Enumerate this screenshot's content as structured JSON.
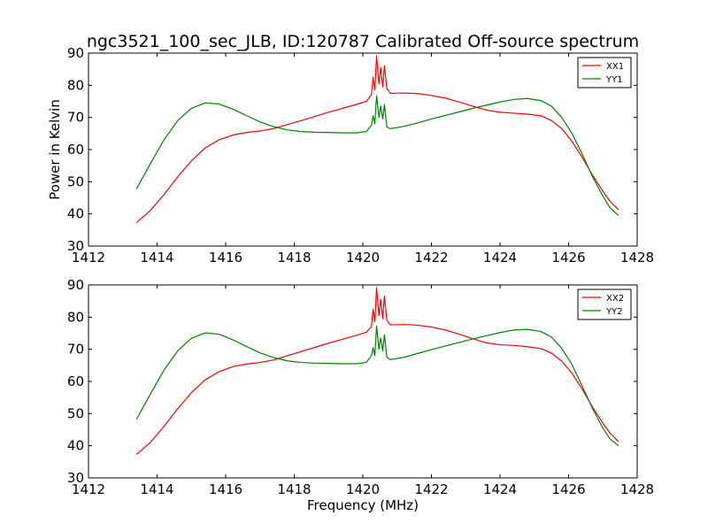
{
  "figure": {
    "title": "ngc3521_100_sec_JLB, ID:120787 Calibrated Off-source spectrum"
  },
  "chart_data": [
    {
      "type": "line",
      "ylabel": "Power in Kelvin",
      "xlabel": "",
      "xlim": [
        1412,
        1428
      ],
      "ylim": [
        30,
        90
      ],
      "xticks": [
        1412,
        1414,
        1416,
        1418,
        1420,
        1422,
        1424,
        1426,
        1428
      ],
      "yticks": [
        30,
        40,
        50,
        60,
        70,
        80,
        90
      ],
      "grid": false,
      "legend_position": "top-right",
      "series": [
        {
          "name": "XX1",
          "color": "#ff0000",
          "points": [
            [
              1413.4,
              37.3
            ],
            [
              1413.8,
              41.0
            ],
            [
              1414.2,
              46.0
            ],
            [
              1414.6,
              51.5
            ],
            [
              1415.0,
              56.5
            ],
            [
              1415.4,
              60.5
            ],
            [
              1415.8,
              63.0
            ],
            [
              1416.2,
              64.5
            ],
            [
              1416.6,
              65.3
            ],
            [
              1417.0,
              65.8
            ],
            [
              1417.4,
              66.5
            ],
            [
              1417.8,
              67.8
            ],
            [
              1418.2,
              69.0
            ],
            [
              1418.6,
              70.3
            ],
            [
              1419.0,
              71.6
            ],
            [
              1419.4,
              72.8
            ],
            [
              1419.8,
              74.0
            ],
            [
              1420.1,
              75.0
            ],
            [
              1420.25,
              77.0
            ],
            [
              1420.3,
              82.5
            ],
            [
              1420.35,
              78.5
            ],
            [
              1420.4,
              89.2
            ],
            [
              1420.47,
              80.5
            ],
            [
              1420.52,
              85.5
            ],
            [
              1420.58,
              79.5
            ],
            [
              1420.63,
              86.0
            ],
            [
              1420.7,
              79.0
            ],
            [
              1420.8,
              77.5
            ],
            [
              1421.2,
              77.6
            ],
            [
              1421.6,
              77.4
            ],
            [
              1422.0,
              76.8
            ],
            [
              1422.4,
              76.0
            ],
            [
              1422.8,
              74.8
            ],
            [
              1423.2,
              73.5
            ],
            [
              1423.6,
              72.3
            ],
            [
              1424.0,
              71.6
            ],
            [
              1424.4,
              71.3
            ],
            [
              1424.8,
              71.0
            ],
            [
              1425.2,
              70.5
            ],
            [
              1425.5,
              69.0
            ],
            [
              1425.8,
              66.5
            ],
            [
              1426.1,
              62.5
            ],
            [
              1426.4,
              57.5
            ],
            [
              1426.7,
              52.0
            ],
            [
              1427.0,
              47.0
            ],
            [
              1427.2,
              44.0
            ],
            [
              1427.45,
              41.3
            ]
          ]
        },
        {
          "name": "YY1",
          "color": "#008000",
          "points": [
            [
              1413.4,
              47.8
            ],
            [
              1413.8,
              55.5
            ],
            [
              1414.2,
              63.0
            ],
            [
              1414.6,
              69.0
            ],
            [
              1415.0,
              72.8
            ],
            [
              1415.4,
              74.5
            ],
            [
              1415.8,
              74.2
            ],
            [
              1416.2,
              72.6
            ],
            [
              1416.6,
              70.6
            ],
            [
              1417.0,
              68.6
            ],
            [
              1417.4,
              67.1
            ],
            [
              1417.8,
              66.1
            ],
            [
              1418.2,
              65.6
            ],
            [
              1418.6,
              65.4
            ],
            [
              1419.0,
              65.3
            ],
            [
              1419.4,
              65.2
            ],
            [
              1419.8,
              65.2
            ],
            [
              1420.1,
              65.6
            ],
            [
              1420.25,
              67.5
            ],
            [
              1420.3,
              70.5
            ],
            [
              1420.35,
              68.0
            ],
            [
              1420.4,
              76.8
            ],
            [
              1420.47,
              70.0
            ],
            [
              1420.52,
              73.5
            ],
            [
              1420.58,
              69.5
            ],
            [
              1420.63,
              74.0
            ],
            [
              1420.7,
              67.0
            ],
            [
              1420.8,
              66.5
            ],
            [
              1421.2,
              67.2
            ],
            [
              1421.6,
              68.3
            ],
            [
              1422.0,
              69.5
            ],
            [
              1422.4,
              70.6
            ],
            [
              1422.8,
              71.7
            ],
            [
              1423.2,
              72.8
            ],
            [
              1423.6,
              73.8
            ],
            [
              1424.0,
              74.8
            ],
            [
              1424.4,
              75.6
            ],
            [
              1424.8,
              75.9
            ],
            [
              1425.2,
              75.2
            ],
            [
              1425.5,
              73.5
            ],
            [
              1425.8,
              70.0
            ],
            [
              1426.1,
              65.0
            ],
            [
              1426.4,
              58.5
            ],
            [
              1426.7,
              51.5
            ],
            [
              1427.0,
              45.5
            ],
            [
              1427.2,
              42.0
            ],
            [
              1427.45,
              39.5
            ]
          ]
        }
      ]
    },
    {
      "type": "line",
      "ylabel": "",
      "xlabel": "Frequency (MHz)",
      "xlim": [
        1412,
        1428
      ],
      "ylim": [
        30,
        90
      ],
      "xticks": [
        1412,
        1414,
        1416,
        1418,
        1420,
        1422,
        1424,
        1426,
        1428
      ],
      "yticks": [
        30,
        40,
        50,
        60,
        70,
        80,
        90
      ],
      "grid": false,
      "legend_position": "top-right",
      "series": [
        {
          "name": "XX2",
          "color": "#ff0000",
          "points": [
            [
              1413.4,
              37.3
            ],
            [
              1413.8,
              41.0
            ],
            [
              1414.2,
              46.0
            ],
            [
              1414.6,
              51.5
            ],
            [
              1415.0,
              56.5
            ],
            [
              1415.4,
              60.5
            ],
            [
              1415.8,
              63.0
            ],
            [
              1416.2,
              64.6
            ],
            [
              1416.6,
              65.4
            ],
            [
              1417.0,
              65.9
            ],
            [
              1417.4,
              66.7
            ],
            [
              1417.8,
              68.0
            ],
            [
              1418.2,
              69.3
            ],
            [
              1418.6,
              70.6
            ],
            [
              1419.0,
              71.9
            ],
            [
              1419.4,
              73.1
            ],
            [
              1419.8,
              74.3
            ],
            [
              1420.1,
              75.3
            ],
            [
              1420.25,
              77.0
            ],
            [
              1420.3,
              82.5
            ],
            [
              1420.35,
              78.5
            ],
            [
              1420.4,
              89.2
            ],
            [
              1420.47,
              80.5
            ],
            [
              1420.52,
              85.5
            ],
            [
              1420.58,
              79.5
            ],
            [
              1420.63,
              86.5
            ],
            [
              1420.7,
              79.0
            ],
            [
              1420.8,
              77.6
            ],
            [
              1421.2,
              77.7
            ],
            [
              1421.6,
              77.5
            ],
            [
              1422.0,
              76.9
            ],
            [
              1422.4,
              76.0
            ],
            [
              1422.8,
              74.7
            ],
            [
              1423.2,
              73.3
            ],
            [
              1423.6,
              72.0
            ],
            [
              1424.0,
              71.4
            ],
            [
              1424.4,
              71.2
            ],
            [
              1424.8,
              70.8
            ],
            [
              1425.2,
              70.2
            ],
            [
              1425.5,
              68.8
            ],
            [
              1425.8,
              66.3
            ],
            [
              1426.1,
              62.5
            ],
            [
              1426.4,
              57.5
            ],
            [
              1426.7,
              52.0
            ],
            [
              1427.0,
              47.0
            ],
            [
              1427.2,
              44.0
            ],
            [
              1427.45,
              41.3
            ]
          ]
        },
        {
          "name": "YY2",
          "color": "#008000",
          "points": [
            [
              1413.4,
              48.2
            ],
            [
              1413.8,
              56.0
            ],
            [
              1414.2,
              63.5
            ],
            [
              1414.6,
              69.5
            ],
            [
              1415.0,
              73.4
            ],
            [
              1415.4,
              75.1
            ],
            [
              1415.8,
              74.7
            ],
            [
              1416.2,
              73.0
            ],
            [
              1416.6,
              70.9
            ],
            [
              1417.0,
              68.9
            ],
            [
              1417.4,
              67.4
            ],
            [
              1417.8,
              66.4
            ],
            [
              1418.2,
              65.9
            ],
            [
              1418.6,
              65.7
            ],
            [
              1419.0,
              65.6
            ],
            [
              1419.4,
              65.5
            ],
            [
              1419.8,
              65.5
            ],
            [
              1420.1,
              65.9
            ],
            [
              1420.25,
              68.0
            ],
            [
              1420.3,
              70.5
            ],
            [
              1420.35,
              68.0
            ],
            [
              1420.4,
              77.2
            ],
            [
              1420.47,
              70.0
            ],
            [
              1420.52,
              73.5
            ],
            [
              1420.58,
              69.5
            ],
            [
              1420.63,
              74.5
            ],
            [
              1420.7,
              67.5
            ],
            [
              1420.8,
              66.8
            ],
            [
              1421.2,
              67.5
            ],
            [
              1421.6,
              68.7
            ],
            [
              1422.0,
              69.9
            ],
            [
              1422.4,
              71.0
            ],
            [
              1422.8,
              72.1
            ],
            [
              1423.2,
              73.2
            ],
            [
              1423.6,
              74.2
            ],
            [
              1424.0,
              75.2
            ],
            [
              1424.4,
              76.0
            ],
            [
              1424.8,
              76.2
            ],
            [
              1425.2,
              75.5
            ],
            [
              1425.5,
              73.8
            ],
            [
              1425.8,
              70.3
            ],
            [
              1426.1,
              65.2
            ],
            [
              1426.4,
              58.5
            ],
            [
              1426.7,
              51.5
            ],
            [
              1427.0,
              45.5
            ],
            [
              1427.2,
              42.2
            ],
            [
              1427.45,
              40.0
            ]
          ]
        }
      ]
    }
  ]
}
